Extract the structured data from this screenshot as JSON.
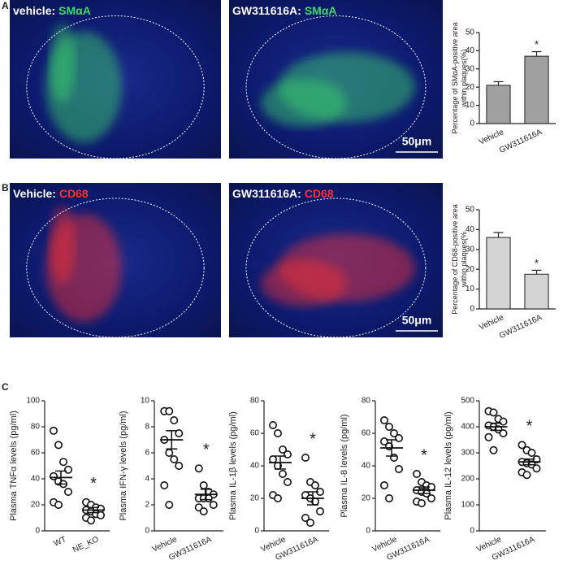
{
  "panel_labels": [
    "A",
    "B",
    "C"
  ],
  "images": [
    {
      "prefix": "vehicle:",
      "stain": "SMαA",
      "stain_color": "#3ddc6a"
    },
    {
      "prefix": "GW311616A:",
      "stain": "SMαA",
      "stain_color": "#3ddc6a",
      "scale_bar": "50μm"
    },
    {
      "prefix": "Vehicle:",
      "stain": "CD68",
      "stain_color": "#ff3030"
    },
    {
      "prefix": "GW311616A:",
      "stain": "CD68",
      "stain_color": "#ff3030",
      "scale_bar": "50μm"
    }
  ],
  "chart_data": [
    {
      "type": "bar",
      "ylabel": [
        "Percentage of SMαA-positive area",
        "within plaques(%)"
      ],
      "categories": [
        "Vehicle",
        "GW311616A"
      ],
      "values": [
        21,
        37
      ],
      "errors": [
        2,
        2.5
      ],
      "color": "#a0a0a0",
      "ylim": [
        0,
        50
      ],
      "yticks": [
        0,
        10,
        20,
        30,
        40,
        50
      ],
      "annotations": [
        {
          "category": "GW311616A",
          "text": "*"
        }
      ]
    },
    {
      "type": "bar",
      "ylabel": [
        "Percentage of CD68-positive area",
        "within plaques(%"
      ],
      "categories": [
        "Vehicle",
        "GW311616A"
      ],
      "values": [
        36,
        17.5
      ],
      "errors": [
        2.5,
        2
      ],
      "color": "#d4d4d4",
      "ylim": [
        0,
        50
      ],
      "yticks": [
        0,
        10,
        20,
        30,
        40,
        50
      ],
      "annotations": [
        {
          "category": "GW311616A",
          "text": "*"
        }
      ]
    },
    {
      "type": "dot",
      "ylabel": [
        "Plasma TNFα levels (pg/ml)"
      ],
      "categories": [
        "WT",
        "NE_KO"
      ],
      "points": [
        [
          77,
          66,
          53,
          47,
          42,
          38,
          36,
          30,
          22,
          20
        ],
        [
          22,
          20,
          18,
          17,
          16,
          15,
          13,
          12,
          10,
          8
        ]
      ],
      "means": [
        41,
        16
      ],
      "sems": [
        5,
        2
      ],
      "ylim": [
        0,
        100
      ],
      "yticks": [
        0,
        20,
        40,
        60,
        80,
        100
      ],
      "annotations": [
        {
          "category": "NE_KO",
          "text": "*"
        }
      ]
    },
    {
      "type": "dot",
      "ylabel": [
        "Plasma IFN-γ levels (pg/ml)"
      ],
      "categories": [
        "Vehicle",
        "GW311616A"
      ],
      "points": [
        [
          9.2,
          9.2,
          8.5,
          7.5,
          7,
          6,
          5.5,
          5,
          3.5,
          2
        ],
        [
          4.8,
          3.5,
          3,
          2.8,
          2.5,
          2.5,
          2.5,
          2,
          1.8,
          1.5
        ]
      ],
      "means": [
        7,
        2.8
      ],
      "sems": [
        0.7,
        0.4
      ],
      "ylim": [
        0,
        10
      ],
      "yticks": [
        0,
        2,
        4,
        6,
        8,
        10
      ],
      "annotations": [
        {
          "category": "GW311616A",
          "text": "*"
        }
      ]
    },
    {
      "type": "dot",
      "ylabel": [
        "Plasma IL-1β levels (pg/ml)"
      ],
      "categories": [
        "Vehicle",
        "GW311616A"
      ],
      "points": [
        [
          65,
          60,
          50,
          47,
          44,
          40,
          35,
          30,
          22,
          20
        ],
        [
          45,
          30,
          28,
          24,
          22,
          20,
          18,
          12,
          8,
          5
        ]
      ],
      "means": [
        42,
        20
      ],
      "sems": [
        4,
        4
      ],
      "ylim": [
        0,
        80
      ],
      "yticks": [
        0,
        20,
        40,
        60,
        80
      ],
      "annotations": [
        {
          "category": "GW311616A",
          "text": "*"
        }
      ]
    },
    {
      "type": "dot",
      "ylabel": [
        "Plasma IL-8 levels (pg/ml)"
      ],
      "categories": [
        "Vehicle",
        "GW311616A"
      ],
      "points": [
        [
          68,
          64,
          60,
          57,
          55,
          52,
          45,
          38,
          28,
          20
        ],
        [
          35,
          30,
          28,
          27,
          25,
          24,
          23,
          20,
          18,
          17
        ]
      ],
      "means": [
        51,
        25
      ],
      "sems": [
        5,
        2
      ],
      "ylim": [
        0,
        80
      ],
      "yticks": [
        0,
        20,
        40,
        60,
        80
      ],
      "annotations": [
        {
          "category": "GW311616A",
          "text": "*"
        }
      ]
    },
    {
      "type": "dot",
      "ylabel": [
        "Plasma IL-12 levels (pg/ml)"
      ],
      "categories": [
        "Vehicle",
        "GW311616A"
      ],
      "points": [
        [
          460,
          455,
          430,
          420,
          405,
          400,
          390,
          375,
          360,
          310
        ],
        [
          330,
          310,
          300,
          275,
          265,
          260,
          255,
          240,
          225,
          215
        ]
      ],
      "means": [
        400,
        265
      ],
      "sems": [
        14,
        11
      ],
      "ylim": [
        0,
        500
      ],
      "yticks": [
        0,
        100,
        200,
        300,
        400,
        500
      ],
      "annotations": [
        {
          "category": "GW311616A",
          "text": "*"
        }
      ]
    }
  ]
}
